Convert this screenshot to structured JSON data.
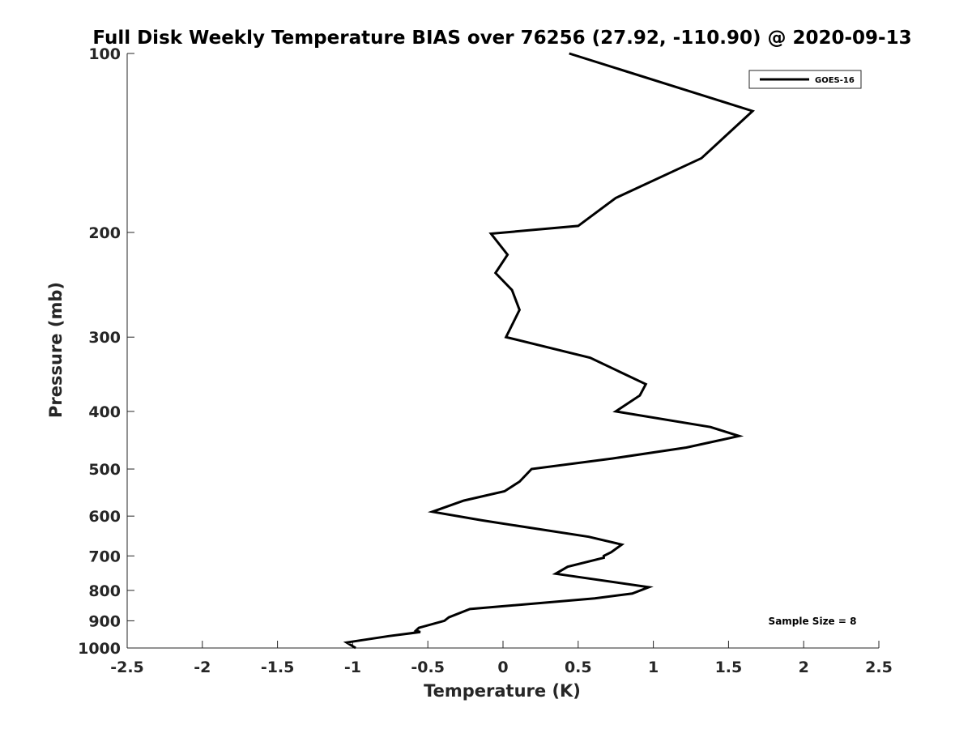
{
  "chart_data": {
    "type": "line",
    "title": "Full Disk Weekly Temperature BIAS over 76256 (27.92, -110.90) @ 2020-09-13",
    "xlabel": "Temperature (K)",
    "ylabel": "Pressure (mb)",
    "xlim": [
      -2.5,
      2.5
    ],
    "ylim": [
      100,
      1000
    ],
    "y_scale": "log",
    "y_reversed": true,
    "grid": false,
    "legend_position": "top-right",
    "x_ticks": [
      "-2.5",
      "-2",
      "-1.5",
      "-1",
      "-0.5",
      "0",
      "0.5",
      "1",
      "1.5",
      "2",
      "2.5"
    ],
    "y_ticks": [
      "100",
      "200",
      "300",
      "400",
      "500",
      "600",
      "700",
      "800",
      "900",
      "1000"
    ],
    "annotation": "Sample Size = 8",
    "line_color": "#000000",
    "series": [
      {
        "name": "GOES-16",
        "points": [
          {
            "x": 0.44,
            "p": 100
          },
          {
            "x": 1.66,
            "p": 125
          },
          {
            "x": 1.32,
            "p": 150
          },
          {
            "x": 0.75,
            "p": 175
          },
          {
            "x": 0.5,
            "p": 195
          },
          {
            "x": -0.08,
            "p": 201
          },
          {
            "x": 0.03,
            "p": 218
          },
          {
            "x": -0.05,
            "p": 234
          },
          {
            "x": 0.06,
            "p": 250
          },
          {
            "x": 0.11,
            "p": 270
          },
          {
            "x": 0.02,
            "p": 300
          },
          {
            "x": 0.58,
            "p": 325
          },
          {
            "x": 0.95,
            "p": 360
          },
          {
            "x": 0.91,
            "p": 376
          },
          {
            "x": 0.75,
            "p": 400
          },
          {
            "x": 1.38,
            "p": 425
          },
          {
            "x": 1.57,
            "p": 440
          },
          {
            "x": 1.22,
            "p": 460
          },
          {
            "x": 0.73,
            "p": 480
          },
          {
            "x": 0.19,
            "p": 500
          },
          {
            "x": 0.11,
            "p": 525
          },
          {
            "x": 0.01,
            "p": 545
          },
          {
            "x": -0.26,
            "p": 565
          },
          {
            "x": -0.47,
            "p": 590
          },
          {
            "x": -0.14,
            "p": 610
          },
          {
            "x": 0.57,
            "p": 650
          },
          {
            "x": 0.79,
            "p": 670
          },
          {
            "x": 0.72,
            "p": 690
          },
          {
            "x": 0.67,
            "p": 700
          },
          {
            "x": 0.67,
            "p": 705
          },
          {
            "x": 0.43,
            "p": 730
          },
          {
            "x": 0.35,
            "p": 750
          },
          {
            "x": 0.97,
            "p": 790
          },
          {
            "x": 0.86,
            "p": 810
          },
          {
            "x": 0.61,
            "p": 825
          },
          {
            "x": -0.22,
            "p": 860
          },
          {
            "x": -0.36,
            "p": 888
          },
          {
            "x": -0.39,
            "p": 900
          },
          {
            "x": -0.56,
            "p": 925
          },
          {
            "x": -0.58,
            "p": 935
          },
          {
            "x": -0.55,
            "p": 940
          },
          {
            "x": -0.76,
            "p": 955
          },
          {
            "x": -1.04,
            "p": 979
          },
          {
            "x": -0.98,
            "p": 1000
          }
        ]
      }
    ]
  }
}
